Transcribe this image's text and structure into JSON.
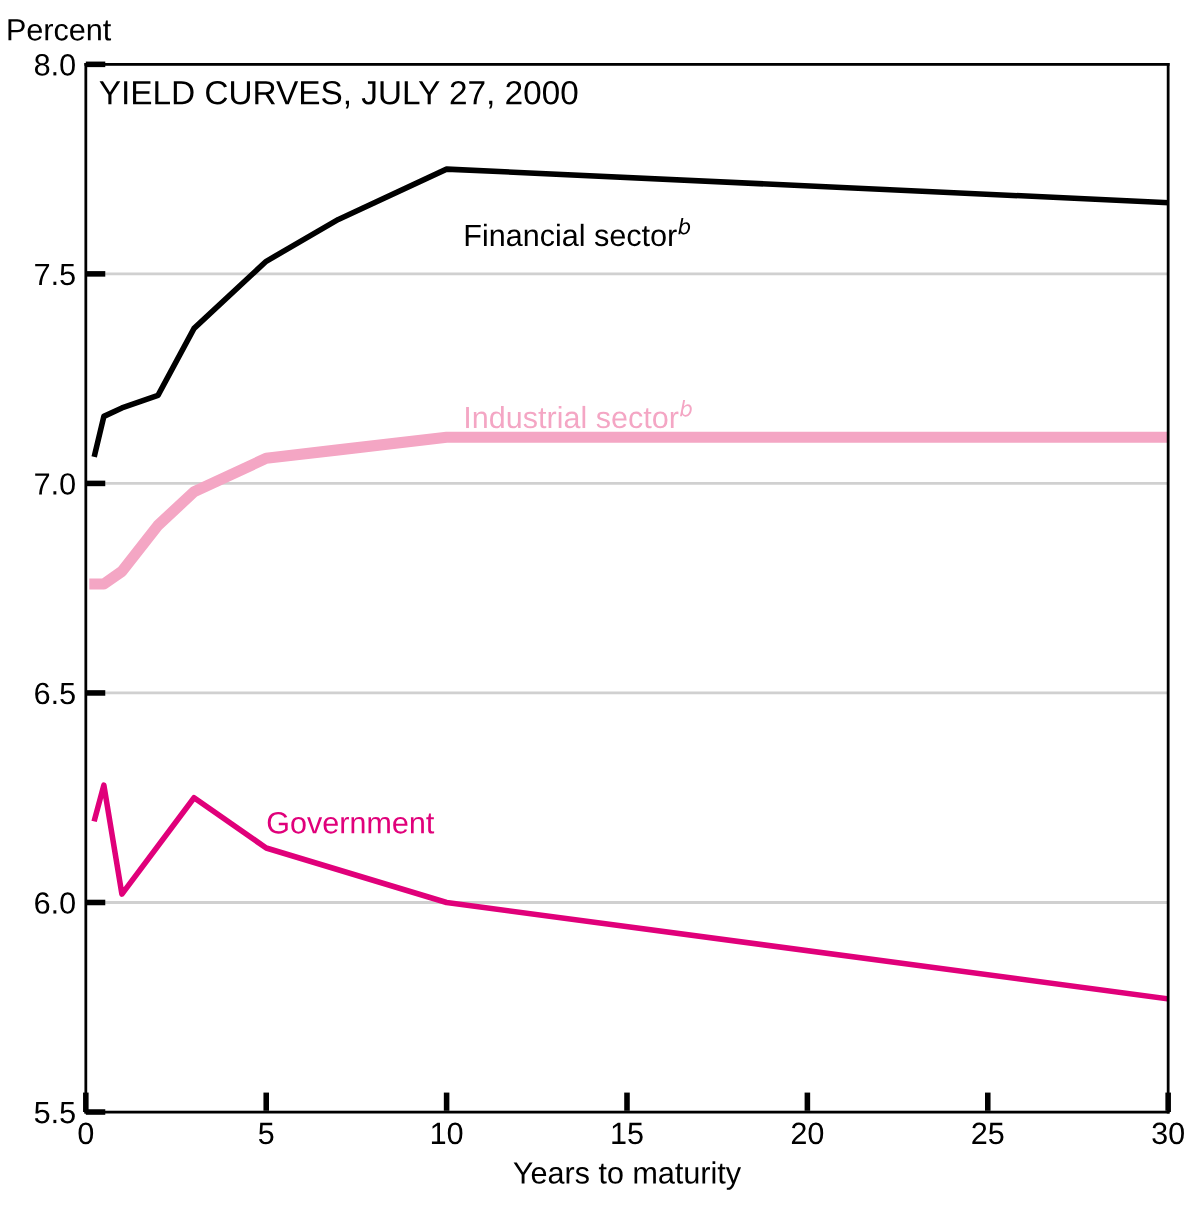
{
  "chart_data": {
    "type": "line",
    "title": "YIELD CURVES, JULY 27, 2000",
    "xlabel": "Years to maturity",
    "ylabel": "Percent",
    "xlim": [
      0,
      30
    ],
    "xticks": [
      0,
      5,
      10,
      15,
      20,
      25,
      30
    ],
    "ylim": [
      5.5,
      8.0
    ],
    "yticks": [
      {
        "value": 5.5,
        "label": "5.5"
      },
      {
        "value": 6.0,
        "label": "6.0"
      },
      {
        "value": 6.5,
        "label": "6.5"
      },
      {
        "value": 7.0,
        "label": "7.0"
      },
      {
        "value": 7.5,
        "label": "7.5"
      },
      {
        "value": 8.0,
        "label": "8.0"
      }
    ],
    "grid": "y",
    "legend": false,
    "marker": "none",
    "line_style": "solid",
    "series": [
      {
        "name": "Financial sector$^{b}$",
        "color": "#000000",
        "x": [
          0.25,
          0.5,
          1,
          2,
          3,
          5,
          7,
          10,
          30
        ],
        "values": [
          7.07,
          7.16,
          7.18,
          7.21,
          7.37,
          7.53,
          7.63,
          7.75,
          7.67
        ]
      },
      {
        "name": "Industrial sector$^{b}$",
        "color": "#f4a6c4",
        "x": [
          0.25,
          0.5,
          1,
          2,
          3,
          5,
          7,
          10,
          30
        ],
        "values": [
          6.76,
          6.76,
          6.79,
          6.9,
          6.98,
          7.06,
          7.08,
          7.11,
          7.11
        ]
      },
      {
        "name": "Government",
        "color": "#e0007a",
        "x": [
          0.25,
          0.5,
          1,
          3,
          5,
          10,
          30
        ],
        "values": [
          6.2,
          6.28,
          6.02,
          6.25,
          6.13,
          6.0,
          5.77
        ]
      }
    ]
  }
}
